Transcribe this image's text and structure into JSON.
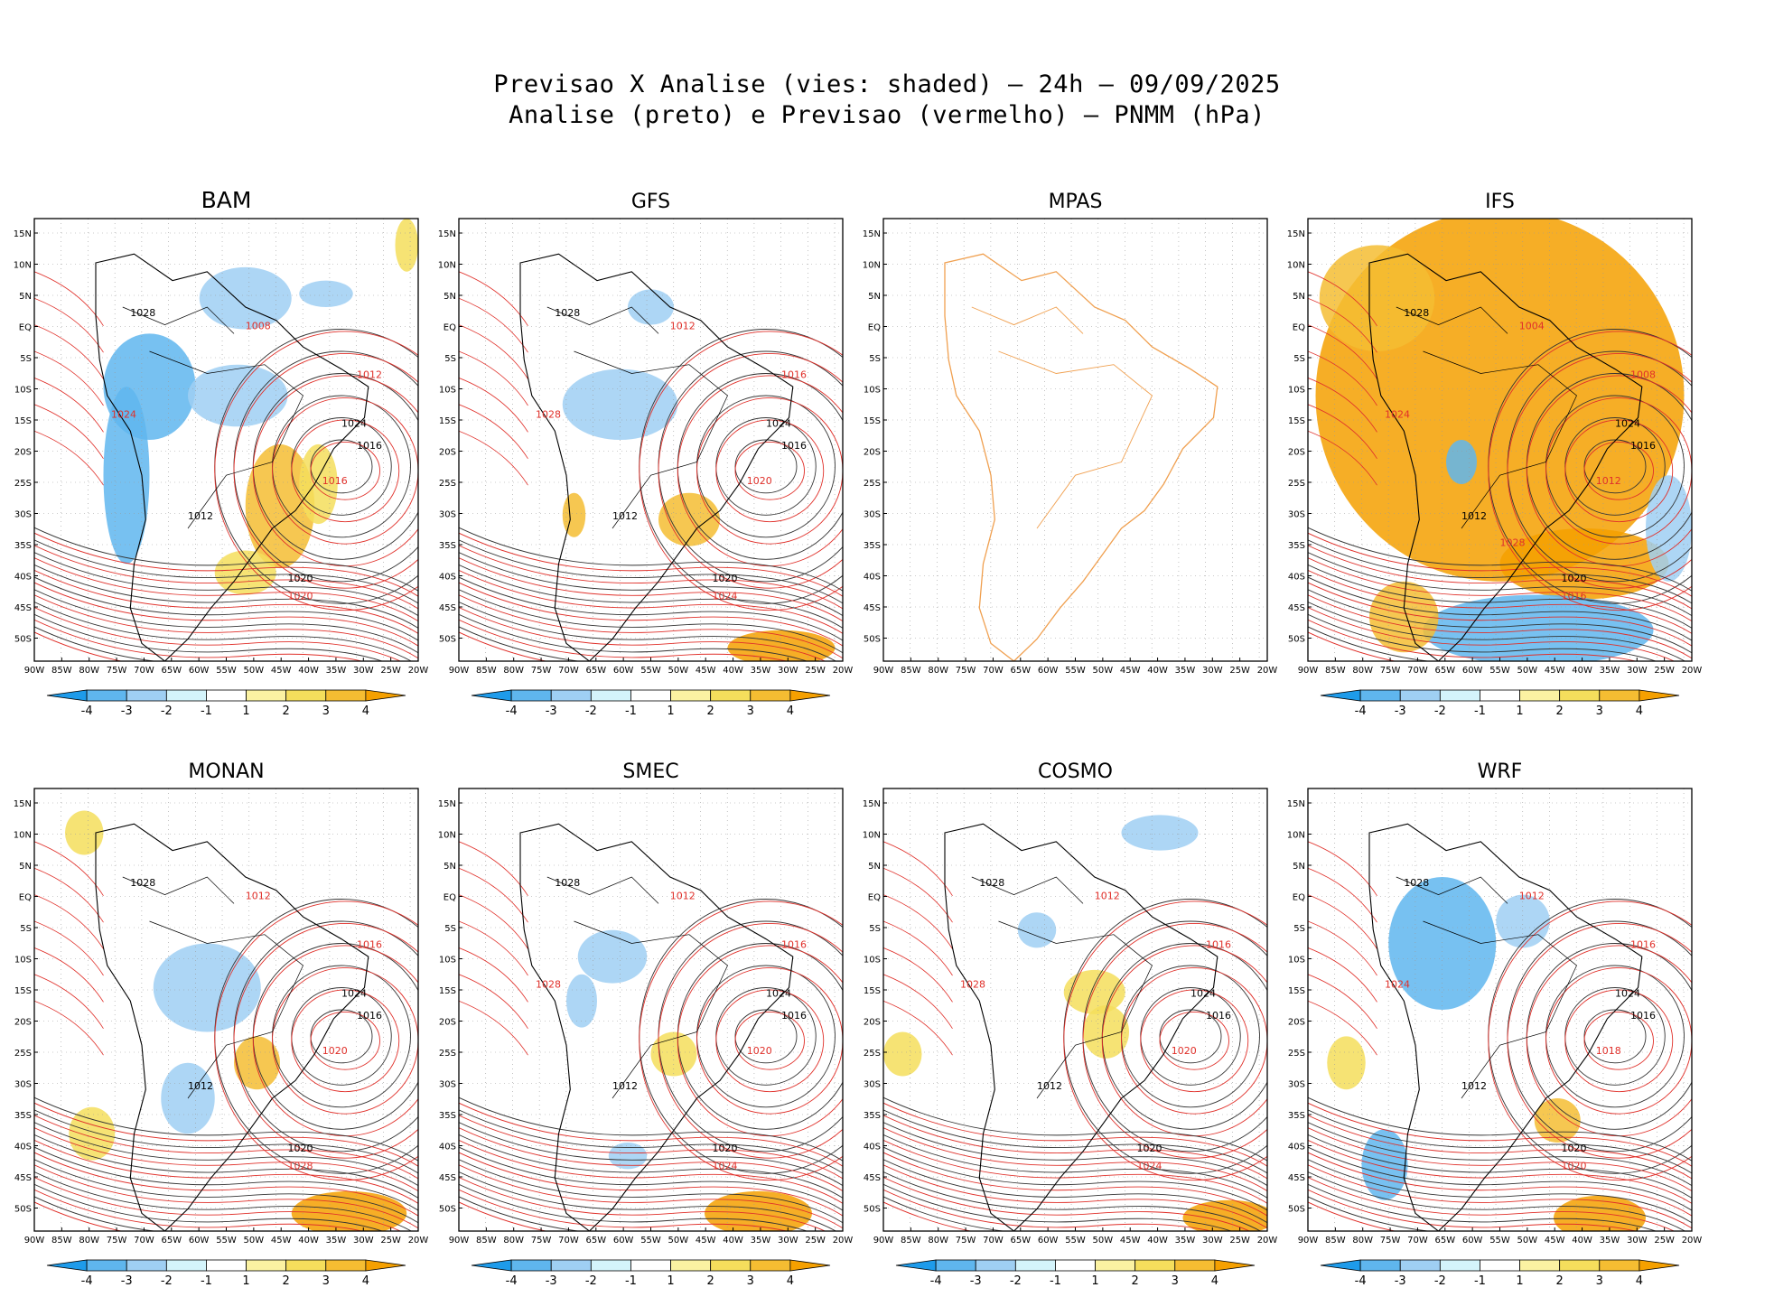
{
  "title": {
    "line1": "Previsao X Analise (vies: shaded) – 24h – 09/09/2025",
    "line2": "Analise (preto) e Previsao (vermelho) – PNMM (hPa)"
  },
  "chart_data": {
    "type": "heatmap",
    "variable": "PNMM (hPa)",
    "shading": "vies (forecast minus analysis bias)",
    "lat_ticks": [
      "15N",
      "10N",
      "5N",
      "EQ",
      "5S",
      "10S",
      "15S",
      "20S",
      "25S",
      "30S",
      "35S",
      "40S",
      "45S",
      "50S"
    ],
    "lon_ticks": [
      "90W",
      "85W",
      "80W",
      "75W",
      "70W",
      "65W",
      "60W",
      "55W",
      "50W",
      "45W",
      "40W",
      "35W",
      "30W",
      "25W",
      "20W"
    ],
    "colorbar": {
      "labels": [
        "-4",
        "-3",
        "-2",
        "-1",
        "1",
        "2",
        "3",
        "4"
      ],
      "colors": [
        "#1e9bea",
        "#5fb6ee",
        "#9fcff3",
        "#d4f4fb",
        "#ffffff",
        "#fbf2a2",
        "#f5de5c",
        "#f5bd32",
        "#f5a000"
      ]
    },
    "panels": [
      {
        "name": "BAM",
        "bias": "negative over Amazon and Andes, positive over southeast Brazil and South Atlantic",
        "contours": [
          {
            "label": "1016",
            "line": "analysis"
          },
          {
            "label": "1020",
            "line": "analysis"
          },
          {
            "label": "1024",
            "line": "analysis"
          },
          {
            "label": "1028",
            "line": "analysis"
          },
          {
            "label": "1012",
            "line": "analysis"
          },
          {
            "label": "1008",
            "line": "forecast"
          },
          {
            "label": "1012",
            "line": "forecast"
          },
          {
            "label": "1016",
            "line": "forecast"
          },
          {
            "label": "1020",
            "line": "forecast"
          },
          {
            "label": "1024",
            "line": "forecast"
          }
        ]
      },
      {
        "name": "GFS",
        "bias": "weak negative over central Brazil, positive near La Plata and southern Atlantic",
        "contours": [
          {
            "label": "1016",
            "line": "analysis"
          },
          {
            "label": "1020",
            "line": "analysis"
          },
          {
            "label": "1024",
            "line": "analysis"
          },
          {
            "label": "1028",
            "line": "analysis"
          },
          {
            "label": "1012",
            "line": "analysis"
          },
          {
            "label": "1012",
            "line": "forecast"
          },
          {
            "label": "1016",
            "line": "forecast"
          },
          {
            "label": "1020",
            "line": "forecast"
          },
          {
            "label": "1024",
            "line": "forecast"
          },
          {
            "label": "1028",
            "line": "forecast"
          }
        ]
      },
      {
        "name": "MPAS",
        "bias": "no data",
        "contours": []
      },
      {
        "name": "IFS",
        "bias": "strong positive over most of South America and Atlantic, negative in southern Atlantic",
        "contours": [
          {
            "label": "1016",
            "line": "analysis"
          },
          {
            "label": "1020",
            "line": "analysis"
          },
          {
            "label": "1024",
            "line": "analysis"
          },
          {
            "label": "1028",
            "line": "analysis"
          },
          {
            "label": "1012",
            "line": "analysis"
          },
          {
            "label": "1004",
            "line": "forecast"
          },
          {
            "label": "1008",
            "line": "forecast"
          },
          {
            "label": "1012",
            "line": "forecast"
          },
          {
            "label": "1016",
            "line": "forecast"
          },
          {
            "label": "1024",
            "line": "forecast"
          },
          {
            "label": "1028",
            "line": "forecast"
          }
        ]
      },
      {
        "name": "MONAN",
        "bias": "weak negative over central Brazil, positive near southern Brazil and southern Atlantic",
        "contours": [
          {
            "label": "1016",
            "line": "analysis"
          },
          {
            "label": "1020",
            "line": "analysis"
          },
          {
            "label": "1024",
            "line": "analysis"
          },
          {
            "label": "1028",
            "line": "analysis"
          },
          {
            "label": "1012",
            "line": "analysis"
          },
          {
            "label": "1012",
            "line": "forecast"
          },
          {
            "label": "1016",
            "line": "forecast"
          },
          {
            "label": "1020",
            "line": "forecast"
          },
          {
            "label": "1028",
            "line": "forecast"
          }
        ]
      },
      {
        "name": "SMEC",
        "bias": "weak negative over central Brazil, positive near Uruguay and southern Atlantic",
        "contours": [
          {
            "label": "1016",
            "line": "analysis"
          },
          {
            "label": "1020",
            "line": "analysis"
          },
          {
            "label": "1024",
            "line": "analysis"
          },
          {
            "label": "1028",
            "line": "analysis"
          },
          {
            "label": "1012",
            "line": "analysis"
          },
          {
            "label": "1012",
            "line": "forecast"
          },
          {
            "label": "1016",
            "line": "forecast"
          },
          {
            "label": "1020",
            "line": "forecast"
          },
          {
            "label": "1024",
            "line": "forecast"
          },
          {
            "label": "1028",
            "line": "forecast"
          }
        ]
      },
      {
        "name": "COSMO",
        "bias": "mixed small biases, positive near southeast Brazil and southern Atlantic",
        "contours": [
          {
            "label": "1016",
            "line": "analysis"
          },
          {
            "label": "1020",
            "line": "analysis"
          },
          {
            "label": "1024",
            "line": "analysis"
          },
          {
            "label": "1028",
            "line": "analysis"
          },
          {
            "label": "1012",
            "line": "analysis"
          },
          {
            "label": "1012",
            "line": "forecast"
          },
          {
            "label": "1016",
            "line": "forecast"
          },
          {
            "label": "1020",
            "line": "forecast"
          },
          {
            "label": "1024",
            "line": "forecast"
          },
          {
            "label": "1028",
            "line": "forecast"
          }
        ]
      },
      {
        "name": "WRF",
        "bias": "negative over Amazon, positive over southern Atlantic",
        "contours": [
          {
            "label": "1016",
            "line": "analysis"
          },
          {
            "label": "1020",
            "line": "analysis"
          },
          {
            "label": "1024",
            "line": "analysis"
          },
          {
            "label": "1028",
            "line": "analysis"
          },
          {
            "label": "1012",
            "line": "analysis"
          },
          {
            "label": "1012",
            "line": "forecast"
          },
          {
            "label": "1016",
            "line": "forecast"
          },
          {
            "label": "1018",
            "line": "forecast"
          },
          {
            "label": "1020",
            "line": "forecast"
          },
          {
            "label": "1024",
            "line": "forecast"
          }
        ]
      }
    ]
  }
}
